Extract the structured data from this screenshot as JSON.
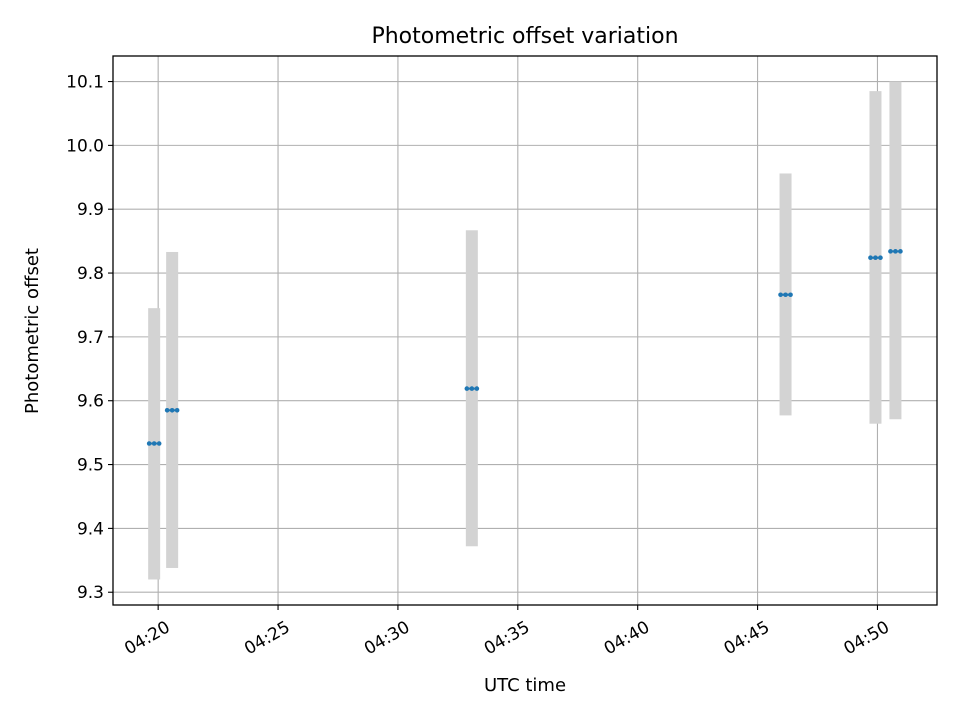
{
  "chart_data": {
    "type": "scatter",
    "title": "Photometric offset variation",
    "xlabel": "UTC time",
    "ylabel": "Photometric offset",
    "x_ticks": [
      "04:20",
      "04:25",
      "04:30",
      "04:35",
      "04:40",
      "04:45",
      "04:50"
    ],
    "y_ticks": [
      "9.3",
      "9.4",
      "9.5",
      "9.6",
      "9.7",
      "9.8",
      "9.9",
      "10.0",
      "10.1"
    ],
    "xlim": [
      "04:18:07",
      "04:52:29"
    ],
    "ylim": [
      9.28,
      10.14
    ],
    "grid": true,
    "error_bar_color": "#d3d3d3",
    "point_color": "#1f77b4",
    "points": [
      {
        "time": "04:19:50",
        "y": 9.533,
        "ymin": 9.32,
        "ymax": 9.745
      },
      {
        "time": "04:20:35",
        "y": 9.585,
        "ymin": 9.338,
        "ymax": 9.833
      },
      {
        "time": "04:33:05",
        "y": 9.619,
        "ymin": 9.372,
        "ymax": 9.867
      },
      {
        "time": "04:46:10",
        "y": 9.766,
        "ymin": 9.577,
        "ymax": 9.956
      },
      {
        "time": "04:49:55",
        "y": 9.824,
        "ymin": 9.564,
        "ymax": 10.085
      },
      {
        "time": "04:50:45",
        "y": 9.834,
        "ymin": 9.571,
        "ymax": 10.1
      }
    ]
  }
}
